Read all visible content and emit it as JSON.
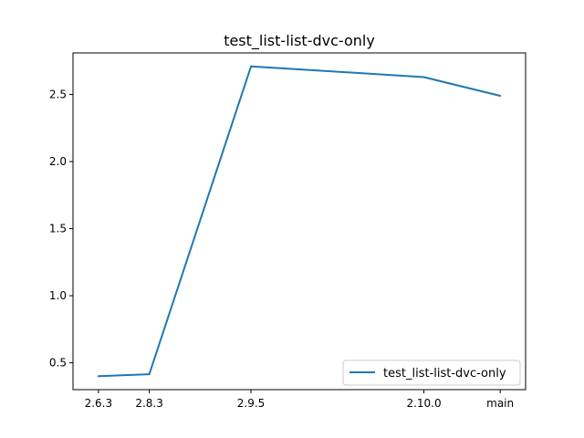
{
  "chart_data": {
    "type": "line",
    "title": "test_list-list-dvc-only",
    "xlabel": "",
    "ylabel": "",
    "categories": [
      "2.6.3",
      "2.8.3",
      "2.9.5",
      "2.10.0",
      "main"
    ],
    "x": [
      0.0,
      0.5,
      1.5,
      3.2,
      3.95
    ],
    "series": [
      {
        "name": "test_list-list-dvc-only",
        "values": [
          0.4,
          0.415,
          2.71,
          2.63,
          2.49
        ],
        "color": "#1f77b4"
      }
    ],
    "ylim": [
      0.3,
      2.81
    ],
    "yticks": [
      0.5,
      1.0,
      1.5,
      2.0,
      2.5
    ],
    "ytick_labels": [
      "0.5",
      "1.0",
      "1.5",
      "2.0",
      "2.5"
    ],
    "grid": false,
    "legend_position": "bottom-right"
  }
}
